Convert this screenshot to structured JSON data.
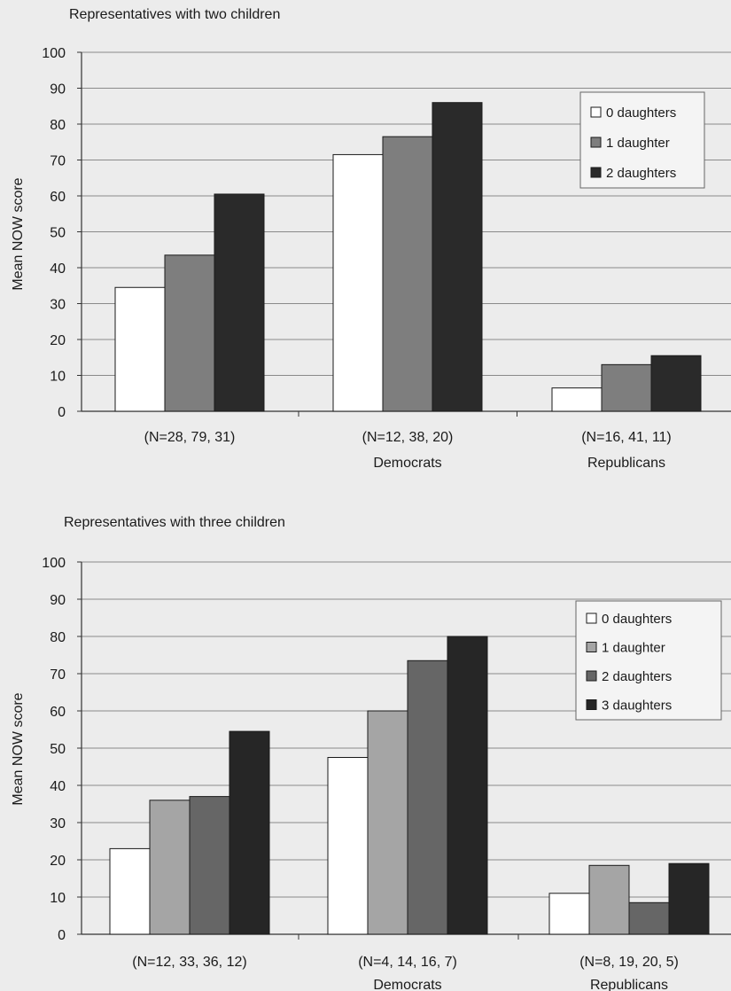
{
  "chart_data": [
    {
      "type": "bar",
      "title": "Representatives with two children",
      "ylabel": "Mean NOW score",
      "ylim": [
        0,
        100
      ],
      "yticks": [
        0,
        10,
        20,
        30,
        40,
        50,
        60,
        70,
        80,
        90,
        100
      ],
      "grid": true,
      "legend_position": "top-right",
      "categories": [
        "(N=28, 79, 31)",
        "(N=12, 38, 20)",
        "(N=16, 41, 11)"
      ],
      "group_labels": [
        "",
        "Democrats",
        "Republicans"
      ],
      "series": [
        {
          "name": "0 daughters",
          "color": "#ffffff",
          "values": [
            34.5,
            71.5,
            6.5
          ]
        },
        {
          "name": "1 daughter",
          "color": "#7e7e7e",
          "values": [
            43.5,
            76.5,
            13
          ]
        },
        {
          "name": "2 daughters",
          "color": "#2a2a2a",
          "values": [
            60.5,
            86,
            15.5
          ]
        }
      ]
    },
    {
      "type": "bar",
      "title": "Representatives with three children",
      "ylabel": "Mean NOW score",
      "ylim": [
        0,
        100
      ],
      "yticks": [
        0,
        10,
        20,
        30,
        40,
        50,
        60,
        70,
        80,
        90,
        100
      ],
      "grid": true,
      "legend_position": "top-right",
      "categories": [
        "(N=12, 33, 36, 12)",
        "(N=4, 14, 16, 7)",
        "(N=8, 19, 20, 5)"
      ],
      "group_labels": [
        "",
        "Democrats",
        "Republicans"
      ],
      "series": [
        {
          "name": "0 daughters",
          "color": "#ffffff",
          "values": [
            23,
            47.5,
            11
          ]
        },
        {
          "name": "1 daughter",
          "color": "#a5a5a5",
          "values": [
            36,
            60,
            18.5
          ]
        },
        {
          "name": "2 daughters",
          "color": "#666666",
          "values": [
            37,
            73.5,
            8.5
          ]
        },
        {
          "name": "3 daughters",
          "color": "#262626",
          "values": [
            54.5,
            80,
            19
          ]
        }
      ]
    }
  ]
}
